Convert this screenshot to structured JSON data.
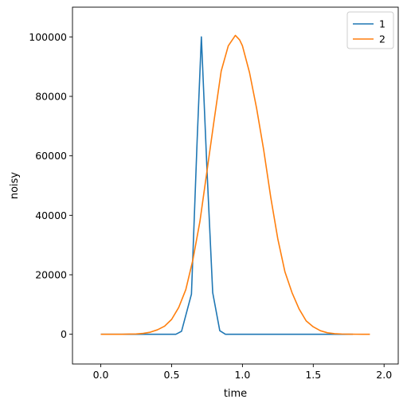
{
  "chart_data": {
    "type": "line",
    "title": "",
    "xlabel": "time",
    "ylabel": "noisy",
    "xlim": [
      -0.2,
      2.1
    ],
    "ylim": [
      -10000,
      110000
    ],
    "xticks": [
      0.0,
      0.5,
      1.0,
      1.5,
      2.0
    ],
    "xtick_labels": [
      "0.0",
      "0.5",
      "1.0",
      "1.5",
      "2.0"
    ],
    "yticks": [
      0,
      20000,
      40000,
      60000,
      80000,
      100000
    ],
    "ytick_labels": [
      "0",
      "20000",
      "40000",
      "60000",
      "80000",
      "100000"
    ],
    "grid": false,
    "legend": "top-right",
    "series": [
      {
        "name": "1",
        "color": "#1f77b4",
        "x": [
          0.0,
          0.53,
          0.57,
          0.64,
          0.68,
          0.71,
          0.75,
          0.79,
          0.84,
          0.88,
          0.95,
          1.2,
          1.5,
          1.78
        ],
        "y": [
          0,
          0,
          1000,
          13500,
          65000,
          100000,
          55000,
          14000,
          1200,
          0,
          0,
          0,
          0,
          0
        ]
      },
      {
        "name": "2",
        "color": "#ff7f0e",
        "x": [
          0.0,
          0.05,
          0.1,
          0.15,
          0.2,
          0.25,
          0.3,
          0.35,
          0.4,
          0.45,
          0.5,
          0.55,
          0.6,
          0.65,
          0.7,
          0.75,
          0.8,
          0.85,
          0.9,
          0.95,
          0.98,
          1.0,
          1.05,
          1.1,
          1.15,
          1.2,
          1.25,
          1.3,
          1.35,
          1.4,
          1.45,
          1.5,
          1.55,
          1.6,
          1.65,
          1.7,
          1.75,
          1.8,
          1.85,
          1.9
        ],
        "y": [
          0,
          0,
          0,
          0,
          50,
          100,
          300,
          700,
          1500,
          2700,
          5000,
          9000,
          15000,
          25000,
          38000,
          55000,
          72000,
          88500,
          97000,
          100500,
          99000,
          97000,
          88000,
          76000,
          62000,
          46000,
          32000,
          21000,
          14000,
          8500,
          4500,
          2500,
          1200,
          500,
          200,
          80,
          30,
          10,
          0,
          0
        ]
      }
    ]
  }
}
